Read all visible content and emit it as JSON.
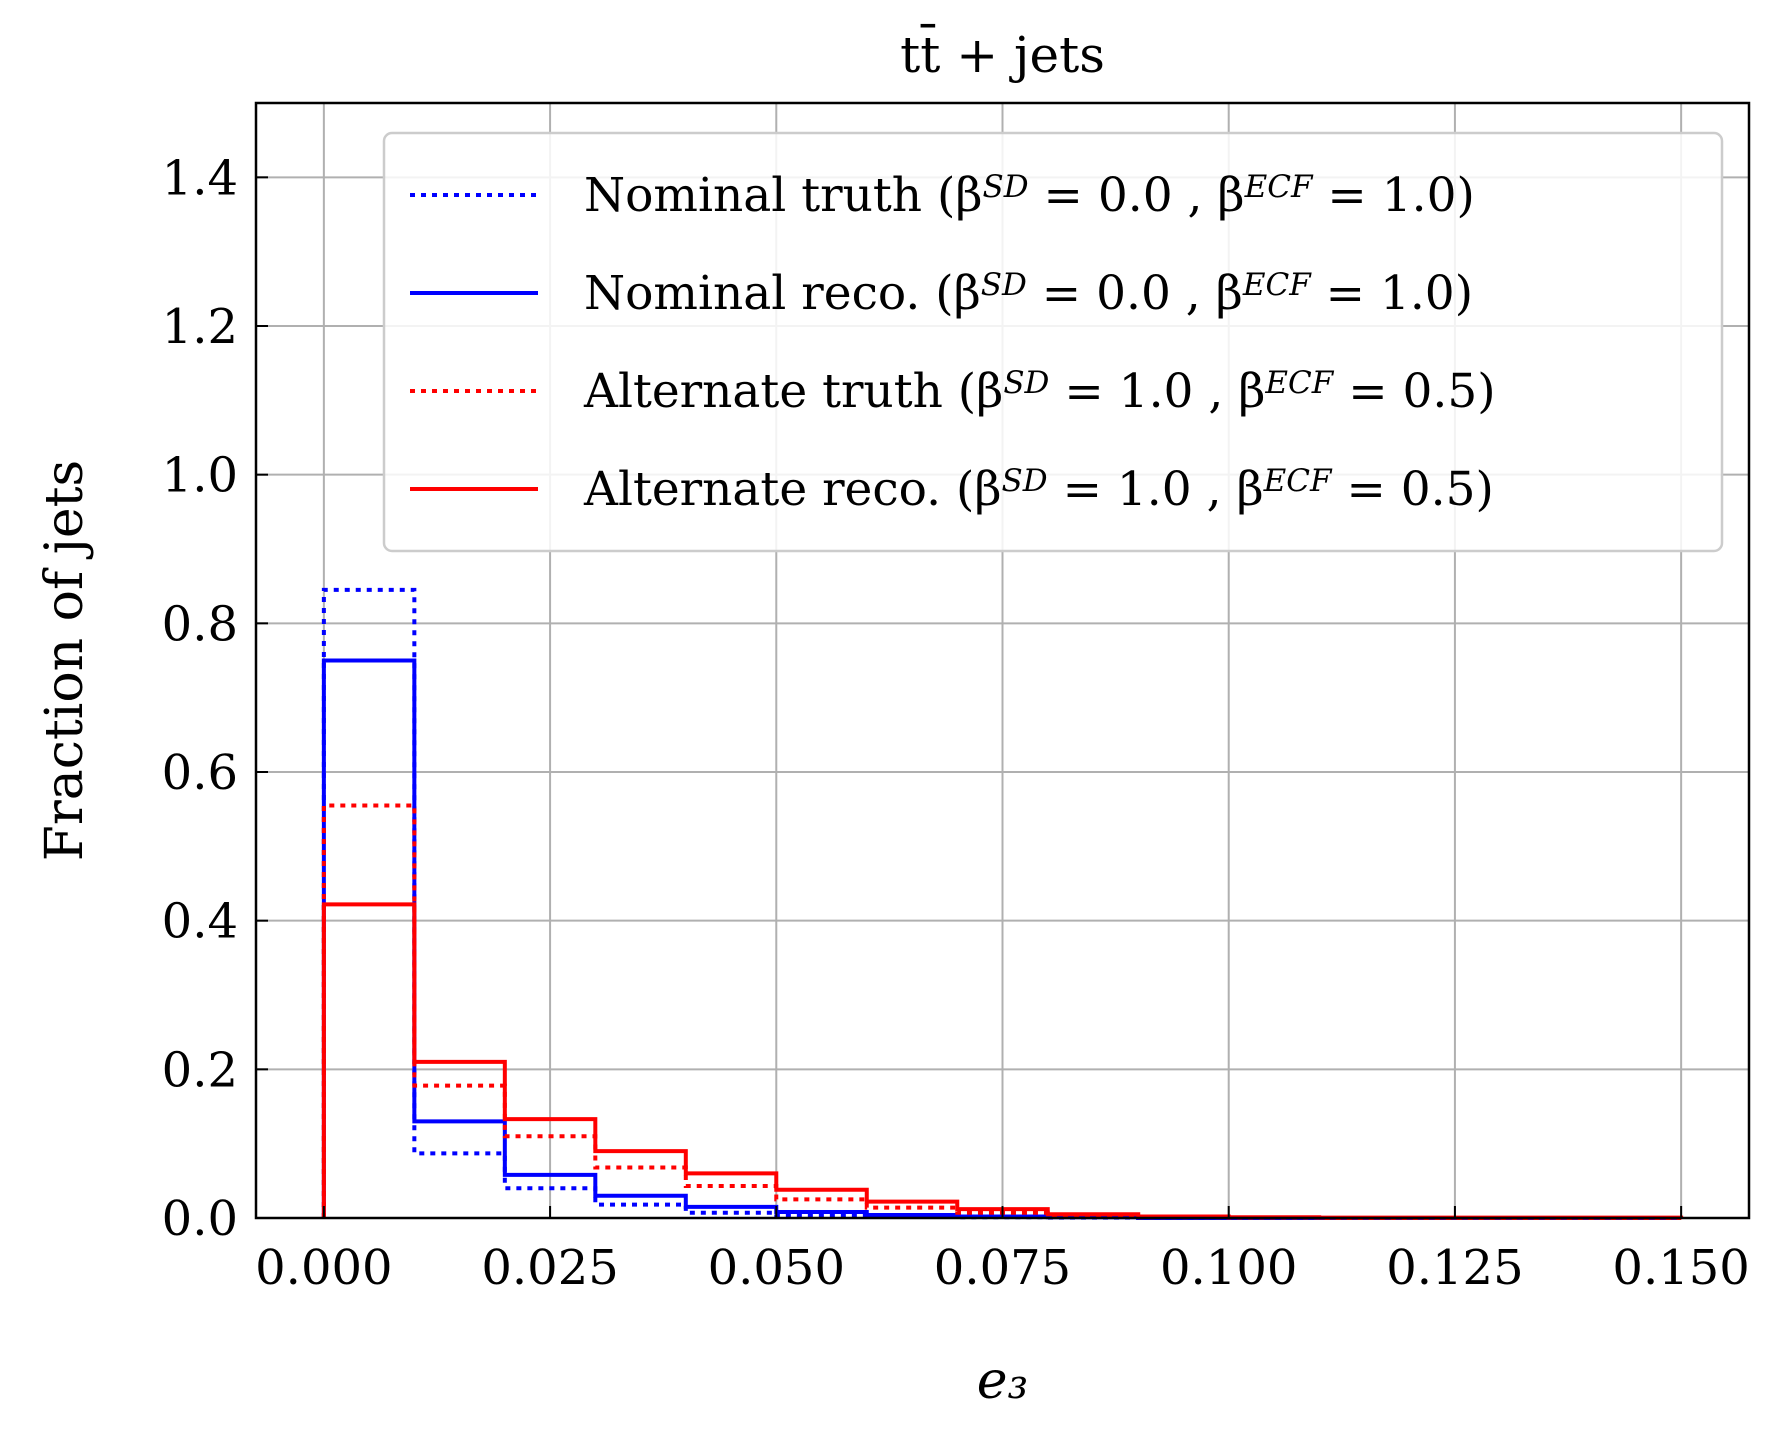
{
  "chart_data": {
    "type": "histogram-step",
    "title": "tt̄ + jets",
    "xlabel": "e₃",
    "ylabel": "Fraction of jets",
    "xlim": [
      -0.0075,
      0.1575
    ],
    "ylim": [
      0.0,
      1.5
    ],
    "xticks": [
      "0.000",
      "0.025",
      "0.050",
      "0.075",
      "0.100",
      "0.125",
      "0.150"
    ],
    "xtick_values": [
      0.0,
      0.025,
      0.05,
      0.075,
      0.1,
      0.125,
      0.15
    ],
    "yticks": [
      "0.0",
      "0.2",
      "0.4",
      "0.6",
      "0.8",
      "1.0",
      "1.2",
      "1.4"
    ],
    "ytick_values": [
      0.0,
      0.2,
      0.4,
      0.6,
      0.8,
      1.0,
      1.2,
      1.4
    ],
    "grid": true,
    "legend_position": "upper-right",
    "bin_edges": [
      0.0,
      0.01,
      0.02,
      0.03,
      0.04,
      0.05,
      0.06,
      0.07,
      0.08,
      0.09,
      0.1,
      0.11,
      0.12,
      0.13,
      0.14,
      0.15
    ],
    "series": [
      {
        "name": "Nominal truth (βSD = 0.0 , βECF = 1.0)",
        "legend": {
          "main": "Nominal truth (β",
          "sup1": "SD",
          "mid": " = 0.0 ,  β",
          "sup2": "ECF",
          "end": " = 1.0)"
        },
        "color": "#0000ff",
        "style": "dotted",
        "values": [
          0.845,
          0.087,
          0.04,
          0.018,
          0.007,
          0.003,
          0.0015,
          0.001,
          0.0005,
          0.0,
          0.0,
          0.0,
          0.0,
          0.0,
          0.0
        ]
      },
      {
        "name": "Nominal reco. (βSD = 0.0 , βECF = 1.0)",
        "legend": {
          "main": "Nominal reco. (β",
          "sup1": "SD",
          "mid": " = 0.0 ,  β",
          "sup2": "ECF",
          "end": " = 1.0)"
        },
        "color": "#0000ff",
        "style": "solid",
        "values": [
          0.75,
          0.13,
          0.058,
          0.03,
          0.015,
          0.008,
          0.004,
          0.002,
          0.001,
          0.0,
          0.0,
          0.0,
          0.0,
          0.0,
          0.0
        ]
      },
      {
        "name": "Alternate truth (βSD = 1.0 , βECF = 0.5)",
        "legend": {
          "main": "Alternate truth (β",
          "sup1": "SD",
          "mid": " = 1.0 ,  β",
          "sup2": "ECF",
          "end": " = 0.5)"
        },
        "color": "#ff0000",
        "style": "dotted",
        "values": [
          0.555,
          0.178,
          0.11,
          0.068,
          0.043,
          0.025,
          0.014,
          0.007,
          0.003,
          0.001,
          0.0005,
          0.0,
          0.0,
          0.0,
          0.0
        ]
      },
      {
        "name": "Alternate reco. (βSD = 1.0 , βECF = 0.5)",
        "legend": {
          "main": "Alternate reco. (β",
          "sup1": "SD",
          "mid": " = 1.0 ,  β",
          "sup2": "ECF",
          "end": " = 0.5)"
        },
        "color": "#ff0000",
        "style": "solid",
        "values": [
          0.422,
          0.21,
          0.133,
          0.09,
          0.06,
          0.038,
          0.022,
          0.012,
          0.005,
          0.002,
          0.001,
          0.0005,
          0.0005,
          0.0005,
          0.0005
        ]
      }
    ]
  }
}
